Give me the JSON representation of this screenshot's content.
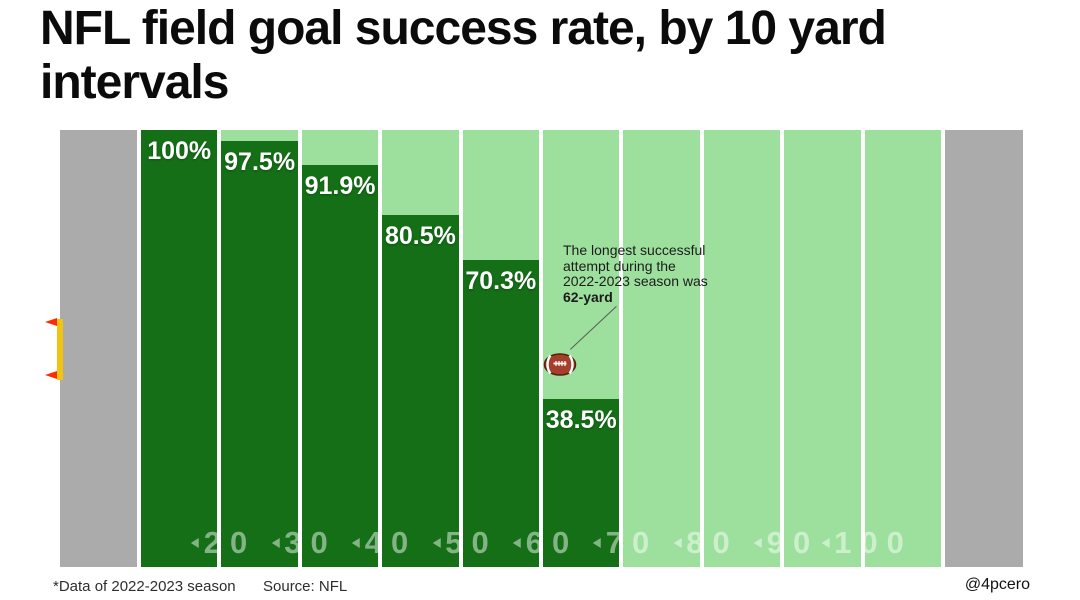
{
  "title_lines": [
    "NFL field goal success rate, by 10 yard",
    "intervals"
  ],
  "footer": {
    "note": "*Data of 2022-2023 season",
    "source": "Source: NFL",
    "credit": "@4pcero"
  },
  "annotation": {
    "lines": [
      "The longest successful",
      "attempt during the",
      "2022-2023 season was"
    ],
    "bold": "62-yard"
  },
  "colors": {
    "bar_dark_green": "#146f17",
    "field_light_green": "#9de09d",
    "endzone_gray": "#ababab",
    "goalpost_yellow": "#f2c411",
    "flag_red": "#ff2a00",
    "football_brown": "#a43f2b",
    "football_outline": "#571e12"
  },
  "chart_data": {
    "type": "bar",
    "title": "NFL field goal success rate, by 10 yard intervals",
    "xlabel": "field position (yard lines, styled as football field)",
    "ylabel": "field goal success rate (%)",
    "ylim": [
      0,
      100
    ],
    "grid": false,
    "legend": "none",
    "yard_markers": [
      "20",
      "30",
      "40",
      "50",
      "60",
      "70",
      "80",
      "90",
      "100"
    ],
    "columns": [
      {
        "x_range": "10-20",
        "value": 100,
        "label": "100%"
      },
      {
        "x_range": "20-30",
        "value": 97.5,
        "label": "97.5%"
      },
      {
        "x_range": "30-40",
        "value": 91.9,
        "label": "91.9%"
      },
      {
        "x_range": "40-50",
        "value": 80.5,
        "label": "80.5%"
      },
      {
        "x_range": "50-60",
        "value": 70.3,
        "label": "70.3%"
      },
      {
        "x_range": "60-70",
        "value": 38.5,
        "label": "38.5%"
      },
      {
        "x_range": "70-80",
        "value": null,
        "label": ""
      },
      {
        "x_range": "80-90",
        "value": null,
        "label": ""
      },
      {
        "x_range": "90-100",
        "value": null,
        "label": ""
      },
      {
        "x_range": "100-110",
        "value": null,
        "label": ""
      }
    ],
    "annotation_marker": {
      "text": "The longest successful attempt during the 2022-2023 season was 62-yard",
      "marker": "football at 62-yard position"
    }
  }
}
